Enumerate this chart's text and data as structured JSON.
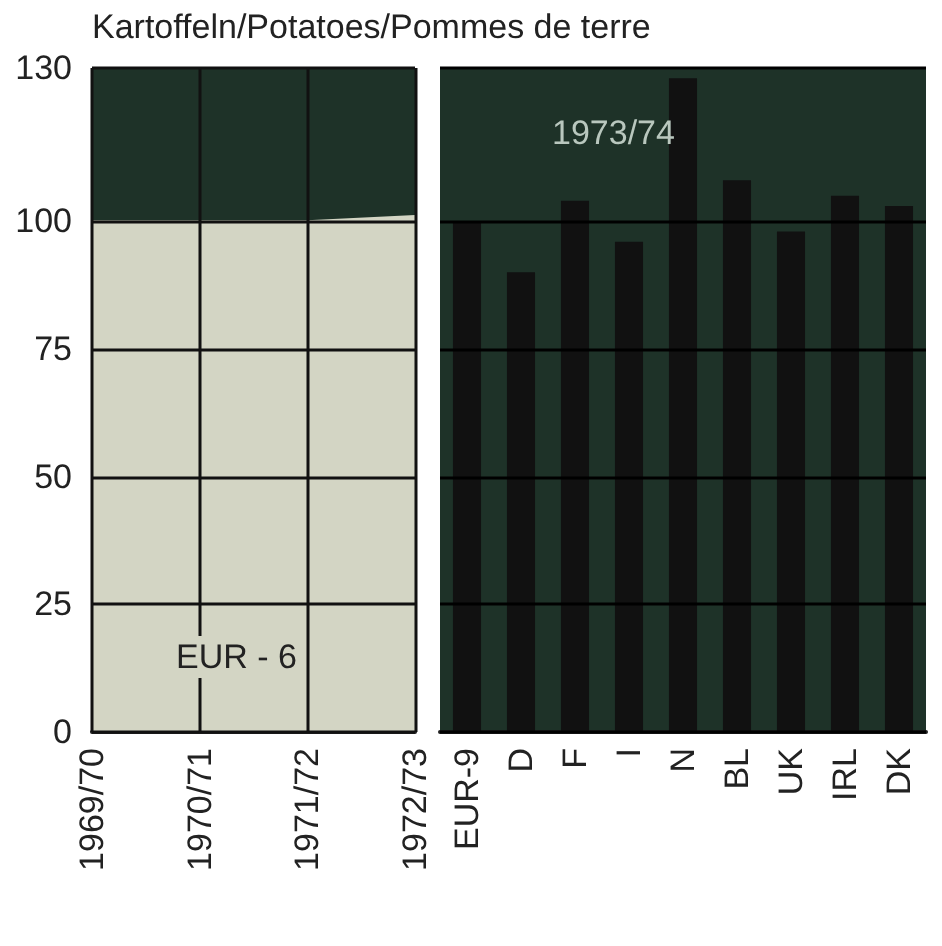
{
  "chart_data": [
    {
      "type": "area",
      "title": "Kartoffeln/Potatoes/Pommes de terre",
      "categories": [
        "1969/70",
        "1970/71",
        "1971/72",
        "1972/73"
      ],
      "values": [
        100,
        100,
        100,
        101
      ],
      "color": "#d3d5c4",
      "ylim": [
        0,
        130
      ],
      "yticks": [
        0,
        25,
        50,
        75,
        100,
        130
      ],
      "grid": true,
      "annotations": [
        "EUR - 6"
      ]
    },
    {
      "type": "bar",
      "categories": [
        "EUR-9",
        "D",
        "F",
        "I",
        "N",
        "BL",
        "UK",
        "IRL",
        "DK"
      ],
      "values": [
        100,
        90,
        104,
        96,
        128,
        108,
        98,
        105,
        103
      ],
      "color": "#111111",
      "ylim": [
        0,
        130
      ],
      "yticks": [
        0,
        25,
        50,
        75,
        100,
        130
      ],
      "grid": "y",
      "tick_labels": "x",
      "annotations": [
        "1973/74"
      ]
    }
  ]
}
